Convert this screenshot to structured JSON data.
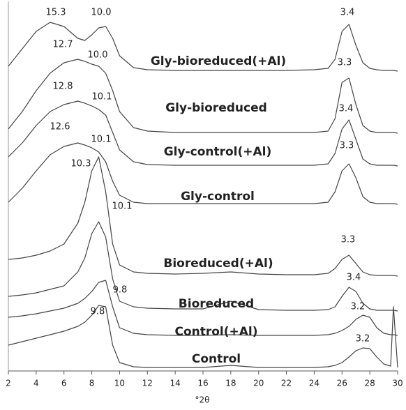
{
  "chart_data": {
    "type": "line",
    "x_label": "°2θ",
    "x": [
      2,
      3,
      4,
      5,
      6,
      7,
      7.5,
      8,
      8.5,
      9,
      9.5,
      10,
      11,
      12,
      14,
      16,
      18,
      20,
      22,
      24,
      25,
      25.5,
      26,
      26.5,
      27,
      27.5,
      28,
      28.5,
      29,
      29.5,
      29.7,
      30
    ],
    "xlim": [
      2,
      30
    ],
    "xticks": [
      2,
      4,
      6,
      8,
      10,
      12,
      14,
      16,
      18,
      20,
      22,
      24,
      26,
      28,
      30
    ],
    "ylim": [
      0,
      106
    ],
    "series": [
      {
        "name": "Gly-bioreduced(+Al)",
        "color": "#444",
        "peak_labels": [
          "15.3",
          "10.0",
          "3.4"
        ],
        "values": [
          87.4,
          92.4,
          97.4,
          100,
          98.8,
          95.4,
          94.8,
          96.4,
          98.4,
          98.8,
          95.4,
          90.4,
          87,
          86.4,
          86.2,
          86.2,
          86.2,
          86.2,
          86.2,
          86.4,
          86.8,
          89.4,
          97.4,
          99.4,
          93.4,
          88.4,
          86.8,
          86.4,
          86.2,
          86.2,
          86.2,
          86
        ]
      },
      {
        "name": "Gly-bioreduced",
        "color": "#444",
        "peak_labels": [
          "12.7",
          "10.0",
          "3.3"
        ],
        "values": [
          69.4,
          74.4,
          80.4,
          85.4,
          88.4,
          89.4,
          88.8,
          88,
          87.4,
          85.4,
          80.4,
          74.4,
          69.8,
          68.8,
          68.4,
          68.4,
          68.4,
          68.4,
          68.4,
          68.4,
          68.8,
          72.4,
          82.8,
          84,
          76.4,
          70.4,
          68.8,
          68.4,
          68.4,
          68.4,
          68.4,
          68.2
        ]
      },
      {
        "name": "Gly-control(+Al)",
        "color": "#444",
        "peak_labels": [
          "12.8",
          "10.1",
          "3.4"
        ],
        "values": [
          61.4,
          65.4,
          70.4,
          74.4,
          76.4,
          77.4,
          76.8,
          76,
          75,
          73.4,
          68.4,
          63.4,
          60,
          59.2,
          59,
          59,
          59,
          59,
          59,
          59,
          59.4,
          62.4,
          69.4,
          72,
          66.4,
          60.8,
          59.4,
          59,
          59,
          59,
          59,
          58.8
        ]
      },
      {
        "name": "Gly-control",
        "color": "#444",
        "peak_labels": [
          "12.6",
          "10.1",
          "3.3"
        ],
        "values": [
          48.4,
          52.4,
          57.4,
          62,
          64.4,
          65.4,
          64.8,
          64,
          62.8,
          60,
          54.4,
          50.4,
          48.4,
          48,
          48,
          48,
          48,
          48,
          48,
          48,
          48.4,
          51.4,
          57.4,
          59.4,
          55.4,
          50,
          48.4,
          48,
          48,
          48,
          48,
          47.8
        ]
      },
      {
        "name": "Bioreduced(+Al)",
        "color": "#444",
        "peak_labels": [
          "10.3",
          "3.3"
        ],
        "values": [
          32,
          32.4,
          33.2,
          34.4,
          36.4,
          42.4,
          48.4,
          57.4,
          61.4,
          51.4,
          36.4,
          30.4,
          28.4,
          28,
          27.8,
          28,
          28.4,
          27.8,
          27.6,
          27.6,
          28,
          29.4,
          32,
          33.2,
          30.8,
          28.4,
          27.6,
          27.4,
          27.4,
          27.4,
          27.4,
          27.2
        ]
      },
      {
        "name": "Bioreduced",
        "color": "#444",
        "peak_labels": [
          "10.1",
          "3.4"
        ],
        "values": [
          21.4,
          21.8,
          22.4,
          23.4,
          24.4,
          28.4,
          32.4,
          39.4,
          42.8,
          38.4,
          26.4,
          20,
          18.4,
          18,
          17.8,
          17.8,
          20,
          17.6,
          17.4,
          17.4,
          17.6,
          18.4,
          21.4,
          24,
          22.8,
          19.4,
          17.8,
          17.4,
          17.4,
          17.4,
          17.4,
          17.2
        ]
      },
      {
        "name": "Control(+Al)",
        "color": "#444",
        "peak_labels": [
          "9.8",
          "3.2"
        ],
        "values": [
          15.4,
          15.8,
          16.4,
          17.2,
          18,
          19.4,
          20.8,
          22.8,
          25.4,
          26,
          18.4,
          12.4,
          10.8,
          10.4,
          10.2,
          10.2,
          10.4,
          10.2,
          10.2,
          10.2,
          10.4,
          10.8,
          11.6,
          12.8,
          14.8,
          16,
          15.4,
          12.4,
          10.8,
          10.4,
          10.4,
          10.2
        ]
      },
      {
        "name": "Control",
        "color": "#444",
        "peak_labels": [
          "9.8",
          "3.2"
        ],
        "values": [
          7.4,
          8.4,
          9.4,
          10.4,
          11.4,
          12.8,
          14,
          16,
          18.8,
          18.4,
          7.4,
          2.4,
          1.2,
          1,
          1,
          1,
          1.6,
          1,
          1,
          1,
          1.2,
          1.6,
          2.4,
          4,
          5.8,
          6.6,
          6.4,
          4,
          2,
          1.4,
          18.4,
          1
        ]
      }
    ]
  }
}
